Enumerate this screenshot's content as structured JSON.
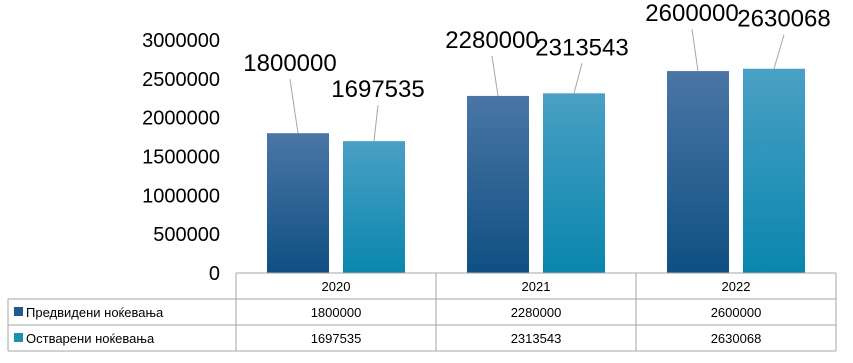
{
  "chart_data": {
    "type": "bar",
    "categories": [
      "2020",
      "2021",
      "2022"
    ],
    "series": [
      {
        "name": "Предвидени ноќевања",
        "values": [
          1800000,
          2280000,
          2600000
        ],
        "color": "#1f5a8c"
      },
      {
        "name": "Остварени ноќевања",
        "values": [
          1697535,
          2313543,
          2630068
        ],
        "color": "#1f8fb0"
      }
    ],
    "yticks": [
      "0",
      "500000",
      "1000000",
      "1500000",
      "2000000",
      "2500000",
      "3000000"
    ],
    "ylim": [
      0,
      3000000
    ],
    "data_labels": [
      [
        "1800000",
        "2280000",
        "2600000"
      ],
      [
        "1697535",
        "2313543",
        "2630068"
      ]
    ],
    "table_rows": [
      {
        "label": "Предвидени ноќевања",
        "cells": [
          "1800000",
          "2280000",
          "2600000"
        ]
      },
      {
        "label": "Остварени ноќевања",
        "cells": [
          "1697535",
          "2313543",
          "2630068"
        ]
      }
    ],
    "legend": "data-table",
    "grid": false
  }
}
